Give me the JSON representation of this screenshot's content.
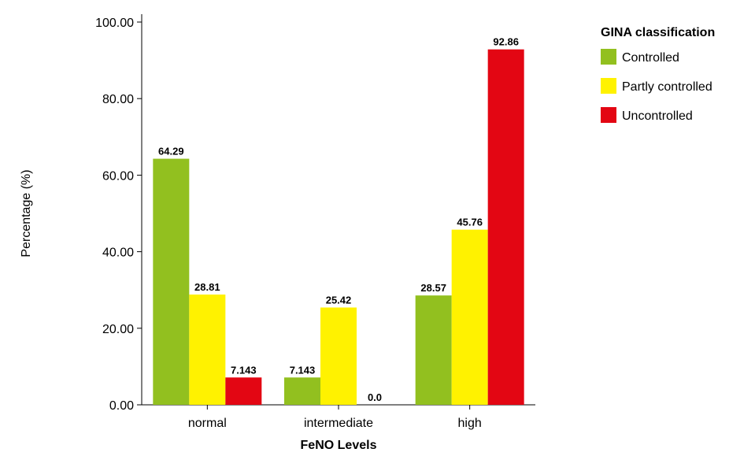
{
  "chart_data": {
    "type": "bar",
    "categories": [
      "normal",
      "intermediate",
      "high"
    ],
    "series": [
      {
        "name": "Controlled",
        "color": "#92C01F",
        "values": [
          64.29,
          7.143,
          28.57
        ],
        "labels": [
          "64.29",
          "7.143",
          "28.57"
        ]
      },
      {
        "name": "Partly controlled",
        "color": "#FFF200",
        "values": [
          28.81,
          25.42,
          45.76
        ],
        "labels": [
          "28.81",
          "25.42",
          "45.76"
        ]
      },
      {
        "name": "Uncontrolled",
        "color": "#E30613",
        "values": [
          7.143,
          0.0,
          92.86
        ],
        "labels": [
          "7.143",
          "0.0",
          "92.86"
        ]
      }
    ],
    "xlabel": "FeNO Levels",
    "ylabel": "Percentage (%)",
    "ylim": [
      0,
      100
    ],
    "yticks": [
      "0.00",
      "20.00",
      "40.00",
      "60.00",
      "80.00",
      "100.00"
    ],
    "legend": {
      "title": "GINA classification",
      "position": "top-right"
    },
    "grid": false
  }
}
